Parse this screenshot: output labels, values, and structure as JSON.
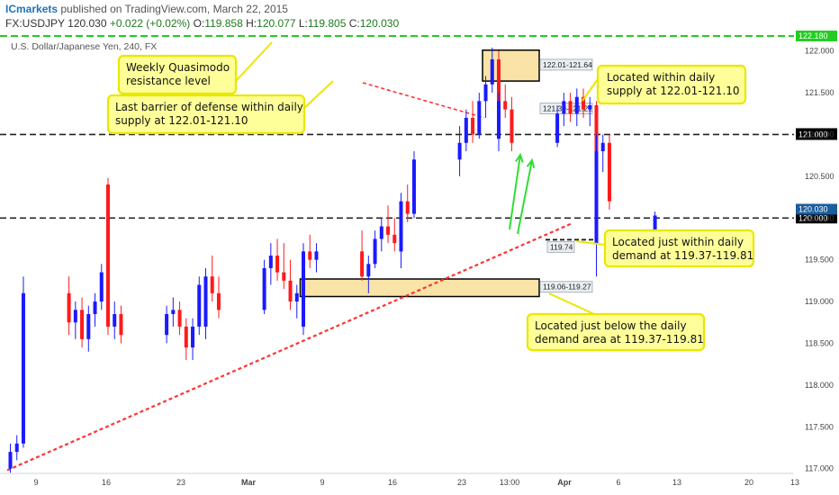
{
  "header": {
    "brand": "ICmarkets",
    "published": "published on TradingView.com, March 22, 2015",
    "symbol": "FX:USDJPY",
    "last": "120.030",
    "change": "+0.022 (+0.02%)",
    "o_label": "O:",
    "o": "119.858",
    "h_label": "H:",
    "h": "120.077",
    "l_label": "L:",
    "l": "119.805",
    "c_label": "C:",
    "c": "120.030"
  },
  "colors": {
    "bull": "#1a1aff",
    "bear": "#ff1a1a",
    "zone_fill": "#f9e3a6",
    "note_fill": "#ffff99",
    "note_border": "#e8e800",
    "green_level": "#22cc22",
    "trend_red": "#ff3333",
    "label_gray_bg": "#e9eef2",
    "price_blue_bg": "#1b5e9e",
    "price_black_bg": "#000000"
  },
  "chart_data": {
    "type": "candlestick",
    "title": "U.S. Dollar/Japanese Yen, 240, FX",
    "y_ticks": [
      "122.000",
      "121.500",
      "121.000",
      "120.500",
      "120.000",
      "119.500",
      "119.000",
      "118.500",
      "118.000",
      "117.500",
      "117.000"
    ],
    "x_ticks": [
      "9",
      "16",
      "23",
      "Mar",
      "9",
      "16",
      "23",
      "13:00",
      "Apr",
      "6",
      "13",
      "20",
      "13"
    ],
    "ylim": [
      116.95,
      122.3
    ],
    "grid": false,
    "series": [
      {
        "date": "2015-02-06 00:00",
        "o": 117.0,
        "h": 117.3,
        "l": 116.95,
        "c": 117.2
      },
      {
        "date": "2015-02-06 08:00",
        "o": 117.2,
        "h": 117.4,
        "l": 117.1,
        "c": 117.3
      },
      {
        "date": "2015-02-06 16:00",
        "o": 117.3,
        "h": 119.3,
        "l": 117.25,
        "c": 119.1
      },
      {
        "date": "2015-02-09 00:00",
        "o": 119.1,
        "h": 119.3,
        "l": 118.6,
        "c": 118.75
      },
      {
        "date": "2015-02-09 08:00",
        "o": 118.75,
        "h": 119.0,
        "l": 118.55,
        "c": 118.9
      },
      {
        "date": "2015-02-09 16:00",
        "o": 118.9,
        "h": 119.05,
        "l": 118.45,
        "c": 118.55
      },
      {
        "date": "2015-02-10 00:00",
        "o": 118.55,
        "h": 118.95,
        "l": 118.4,
        "c": 118.85
      },
      {
        "date": "2015-02-10 08:00",
        "o": 118.85,
        "h": 119.1,
        "l": 118.7,
        "c": 119.0
      },
      {
        "date": "2015-02-10 16:00",
        "o": 119.0,
        "h": 119.45,
        "l": 118.9,
        "c": 119.35
      },
      {
        "date": "2015-02-11 00:00",
        "o": 119.35,
        "h": 119.7,
        "l": 119.2,
        "c": 119.6
      },
      {
        "date": "2015-02-11 08:00",
        "o": 119.6,
        "h": 120.1,
        "l": 119.5,
        "c": 120.0
      },
      {
        "date": "2015-02-11 16:00",
        "o": 120.0,
        "h": 120.45,
        "l": 119.9,
        "c": 120.4
      },
      {
        "date": "2015-02-12 00:00",
        "o": 120.4,
        "h": 120.48,
        "l": 119.9,
        "c": 120.0
      },
      {
        "date": "2015-02-12 08:00",
        "o": 120.0,
        "h": 120.1,
        "l": 119.3,
        "c": 119.4
      },
      {
        "date": "2015-02-12 16:00",
        "o": 119.4,
        "h": 119.5,
        "l": 118.9,
        "c": 119.0
      },
      {
        "date": "2015-02-13 00:00",
        "o": 119.0,
        "h": 119.2,
        "l": 118.6,
        "c": 118.7
      },
      {
        "date": "2015-02-13 08:00",
        "o": 118.7,
        "h": 119.0,
        "l": 118.55,
        "c": 118.85
      },
      {
        "date": "2015-02-13 16:00",
        "o": 118.85,
        "h": 118.95,
        "l": 118.5,
        "c": 118.6
      },
      {
        "date": "2015-02-16 00:00",
        "o": 118.6,
        "h": 118.95,
        "l": 118.5,
        "c": 118.85
      },
      {
        "date": "2015-02-16 08:00",
        "o": 118.85,
        "h": 119.05,
        "l": 118.7,
        "c": 118.9
      },
      {
        "date": "2015-02-16 16:00",
        "o": 118.9,
        "h": 119.0,
        "l": 118.6,
        "c": 118.7
      },
      {
        "date": "2015-02-17 00:00",
        "o": 118.7,
        "h": 118.8,
        "l": 118.3,
        "c": 118.45
      },
      {
        "date": "2015-02-17 08:00",
        "o": 118.45,
        "h": 118.8,
        "l": 118.3,
        "c": 118.7
      },
      {
        "date": "2015-02-17 16:00",
        "o": 118.7,
        "h": 119.3,
        "l": 118.6,
        "c": 119.2
      },
      {
        "date": "2015-02-18 00:00",
        "o": 119.2,
        "h": 119.4,
        "l": 118.8,
        "c": 118.9
      },
      {
        "date": "2015-02-18 08:00",
        "o": 118.9,
        "h": 119.1,
        "l": 118.7,
        "c": 119.0
      },
      {
        "date": "2015-02-18 16:00",
        "o": 119.0,
        "h": 119.1,
        "l": 118.65,
        "c": 118.75
      },
      {
        "date": "2015-02-19 00:00",
        "o": 118.75,
        "h": 118.9,
        "l": 118.55,
        "c": 118.8
      },
      {
        "date": "2015-02-19 08:00",
        "o": 118.8,
        "h": 119.0,
        "l": 118.6,
        "c": 118.7
      },
      {
        "date": "2015-02-19 16:00",
        "o": 118.7,
        "h": 119.05,
        "l": 118.6,
        "c": 118.95
      },
      {
        "date": "2015-02-20 00:00",
        "o": 118.95,
        "h": 119.4,
        "l": 118.85,
        "c": 119.3
      },
      {
        "date": "2015-02-20 08:00",
        "o": 119.3,
        "h": 119.55,
        "l": 119.0,
        "c": 119.1
      },
      {
        "date": "2015-02-20 16:00",
        "o": 119.1,
        "h": 119.3,
        "l": 118.8,
        "c": 118.9
      },
      {
        "date": "2015-02-23 00:00",
        "o": 118.9,
        "h": 119.5,
        "l": 118.85,
        "c": 119.4
      },
      {
        "date": "2015-02-23 08:00",
        "o": 119.4,
        "h": 119.7,
        "l": 119.2,
        "c": 119.55
      },
      {
        "date": "2015-02-23 16:00",
        "o": 119.55,
        "h": 119.75,
        "l": 119.25,
        "c": 119.35
      },
      {
        "date": "2015-02-24 00:00",
        "o": 119.35,
        "h": 119.7,
        "l": 119.15,
        "c": 119.25
      },
      {
        "date": "2015-02-24 08:00",
        "o": 119.25,
        "h": 119.5,
        "l": 118.9,
        "c": 119.0
      },
      {
        "date": "2015-02-24 16:00",
        "o": 119.0,
        "h": 119.2,
        "l": 118.8,
        "c": 119.1
      },
      {
        "date": "2015-02-25 00:00",
        "o": 119.1,
        "h": 119.3,
        "l": 118.85,
        "c": 118.95
      },
      {
        "date": "2015-02-25 08:00",
        "o": 118.95,
        "h": 119.2,
        "l": 118.8,
        "c": 119.05
      },
      {
        "date": "2015-02-25 16:00",
        "o": 119.05,
        "h": 119.15,
        "l": 118.75,
        "c": 118.85
      },
      {
        "date": "2015-02-26 00:00",
        "o": 118.85,
        "h": 119.0,
        "l": 118.6,
        "c": 118.7
      },
      {
        "date": "2015-02-26 08:00",
        "o": 118.7,
        "h": 119.1,
        "l": 118.6,
        "c": 119.0
      },
      {
        "date": "2015-02-26 16:00",
        "o": 119.0,
        "h": 119.5,
        "l": 118.95,
        "c": 119.4
      },
      {
        "date": "2015-02-27 00:00",
        "o": 119.4,
        "h": 119.7,
        "l": 119.3,
        "c": 119.6
      },
      {
        "date": "2015-02-27 08:00",
        "o": 119.6,
        "h": 119.8,
        "l": 119.4,
        "c": 119.5
      },
      {
        "date": "2015-02-27 16:00",
        "o": 119.5,
        "h": 119.7,
        "l": 119.35,
        "c": 119.6
      },
      {
        "date": "2015-03-02 00:00",
        "o": 119.6,
        "h": 119.85,
        "l": 119.25,
        "c": 119.3
      },
      {
        "date": "2015-03-02 08:00",
        "o": 119.3,
        "h": 119.55,
        "l": 119.1,
        "c": 119.45
      },
      {
        "date": "2015-03-02 16:00",
        "o": 119.45,
        "h": 119.85,
        "l": 119.4,
        "c": 119.75
      },
      {
        "date": "2015-03-03 00:00",
        "o": 119.75,
        "h": 120.0,
        "l": 119.6,
        "c": 119.9
      },
      {
        "date": "2015-03-03 08:00",
        "o": 119.9,
        "h": 120.15,
        "l": 119.7,
        "c": 119.8
      },
      {
        "date": "2015-03-03 16:00",
        "o": 119.8,
        "h": 120.0,
        "l": 119.6,
        "c": 119.7
      },
      {
        "date": "2015-03-04 00:00",
        "o": 119.7,
        "h": 120.05,
        "l": 119.6,
        "c": 119.95
      },
      {
        "date": "2015-03-04 08:00",
        "o": 119.95,
        "h": 120.1,
        "l": 119.75,
        "c": 119.85
      },
      {
        "date": "2015-03-04 16:00",
        "o": 119.85,
        "h": 119.95,
        "l": 119.6,
        "c": 119.75
      },
      {
        "date": "2015-03-05 00:00",
        "o": 119.75,
        "h": 119.9,
        "l": 119.5,
        "c": 119.6
      },
      {
        "date": "2015-03-05 08:00",
        "o": 119.6,
        "h": 119.8,
        "l": 119.4,
        "c": 119.7
      },
      {
        "date": "2015-03-05 16:00",
        "o": 119.7,
        "h": 120.0,
        "l": 119.6,
        "c": 119.9
      },
      {
        "date": "2015-03-06 00:00",
        "o": 119.9,
        "h": 120.3,
        "l": 119.8,
        "c": 120.2
      },
      {
        "date": "2015-03-06 08:00",
        "o": 120.2,
        "h": 120.4,
        "l": 119.95,
        "c": 120.05
      },
      {
        "date": "2015-03-06 16:00",
        "o": 120.05,
        "h": 120.8,
        "l": 120.0,
        "c": 120.7
      },
      {
        "date": "2015-03-09 00:00",
        "o": 120.7,
        "h": 121.1,
        "l": 120.5,
        "c": 120.9
      },
      {
        "date": "2015-03-09 08:00",
        "o": 120.9,
        "h": 121.3,
        "l": 120.8,
        "c": 121.2
      },
      {
        "date": "2015-03-09 16:00",
        "o": 121.2,
        "h": 121.4,
        "l": 120.9,
        "c": 121.0
      },
      {
        "date": "2015-03-10 00:00",
        "o": 121.0,
        "h": 121.5,
        "l": 120.95,
        "c": 121.4
      },
      {
        "date": "2015-03-10 08:00",
        "o": 121.4,
        "h": 121.7,
        "l": 121.2,
        "c": 121.6
      },
      {
        "date": "2015-03-10 16:00",
        "o": 121.6,
        "h": 122.04,
        "l": 121.5,
        "c": 121.9
      },
      {
        "date": "2015-03-11 00:00",
        "o": 121.9,
        "h": 122.0,
        "l": 121.3,
        "c": 121.4
      },
      {
        "date": "2015-03-11 08:00",
        "o": 121.4,
        "h": 121.6,
        "l": 121.1,
        "c": 121.2
      },
      {
        "date": "2015-03-11 16:00",
        "o": 121.2,
        "h": 121.4,
        "l": 120.85,
        "c": 120.95
      },
      {
        "date": "2015-03-12 00:00",
        "o": 120.95,
        "h": 121.3,
        "l": 120.8,
        "c": 121.2
      },
      {
        "date": "2015-03-12 08:00",
        "o": 121.2,
        "h": 121.6,
        "l": 121.1,
        "c": 121.5
      },
      {
        "date": "2015-03-12 16:00",
        "o": 121.5,
        "h": 121.65,
        "l": 121.2,
        "c": 121.3
      },
      {
        "date": "2015-03-13 00:00",
        "o": 121.3,
        "h": 121.5,
        "l": 121.1,
        "c": 121.4
      },
      {
        "date": "2015-03-13 08:00",
        "o": 121.4,
        "h": 121.6,
        "l": 121.2,
        "c": 121.3
      },
      {
        "date": "2015-03-13 16:00",
        "o": 121.3,
        "h": 121.45,
        "l": 120.8,
        "c": 120.9
      },
      {
        "date": "2015-03-16 00:00",
        "o": 120.9,
        "h": 121.35,
        "l": 120.85,
        "c": 121.25
      },
      {
        "date": "2015-03-16 08:00",
        "o": 121.25,
        "h": 121.5,
        "l": 121.1,
        "c": 121.4
      },
      {
        "date": "2015-03-16 16:00",
        "o": 121.4,
        "h": 121.5,
        "l": 121.15,
        "c": 121.25
      },
      {
        "date": "2015-03-17 00:00",
        "o": 121.25,
        "h": 121.55,
        "l": 121.1,
        "c": 121.45
      },
      {
        "date": "2015-03-17 08:00",
        "o": 121.45,
        "h": 121.55,
        "l": 121.2,
        "c": 121.3
      },
      {
        "date": "2015-03-17 16:00",
        "o": 121.3,
        "h": 121.45,
        "l": 121.1,
        "c": 121.35
      },
      {
        "date": "2015-03-18 00:00",
        "o": 121.35,
        "h": 121.4,
        "l": 121.05,
        "c": 121.15
      },
      {
        "date": "2015-03-18 08:00",
        "o": 121.15,
        "h": 121.3,
        "l": 120.7,
        "c": 120.8
      },
      {
        "date": "2015-03-18 16:00",
        "o": 120.8,
        "h": 120.9,
        "l": 119.5,
        "c": 119.7
      },
      {
        "date": "2015-03-19 00:00",
        "o": 119.7,
        "h": 119.9,
        "l": 119.3,
        "c": 119.8
      },
      {
        "date": "2015-03-19 08:00",
        "o": 119.8,
        "h": 120.4,
        "l": 119.74,
        "c": 120.3
      },
      {
        "date": "2015-03-19 16:00",
        "o": 120.3,
        "h": 120.7,
        "l": 120.2,
        "c": 120.6
      },
      {
        "date": "2015-03-20 00:00",
        "o": 120.6,
        "h": 121.0,
        "l": 120.5,
        "c": 120.8
      },
      {
        "date": "2015-03-20 08:00",
        "o": 120.8,
        "h": 121.0,
        "l": 120.55,
        "c": 120.9
      },
      {
        "date": "2015-03-20 16:00",
        "o": 120.9,
        "h": 121.0,
        "l": 120.1,
        "c": 120.2
      },
      {
        "date": "2015-03-23 00:00",
        "o": 119.858,
        "h": 120.077,
        "l": 119.805,
        "c": 120.03
      }
    ],
    "levels": [
      {
        "price": 122.18,
        "style": "dashed",
        "color": "green",
        "label": "122.180"
      },
      {
        "price": 121.0,
        "style": "dashed",
        "color": "black",
        "label": "121.000"
      },
      {
        "price": 120.0,
        "style": "dashed",
        "color": "black",
        "label": "120.000"
      }
    ],
    "last_price_label": "120.030",
    "zones": [
      {
        "label": "122.01-121.64",
        "top": 122.01,
        "bottom": 121.64,
        "from": "2015-03-10 08:00"
      },
      {
        "label": "121.39-121.21",
        "top": 121.39,
        "bottom": 121.21,
        "from": "2015-03-17 16:00"
      },
      {
        "label": "119.06-119.27",
        "top": 119.27,
        "bottom": 119.06,
        "from": "2015-02-26 16:00"
      }
    ],
    "support_line": {
      "label": "119.74",
      "price": 119.74,
      "from": "2015-03-19 08:00",
      "to": "2015-03-25 00:00"
    },
    "trendlines": [
      {
        "name": "ascending trendline",
        "from": {
          "date": "2015-02-06 00:00",
          "price": 116.98
        },
        "to": {
          "date": "2015-03-26 00:00",
          "price": 119.93
        }
      },
      {
        "name": "descending resistance",
        "from": {
          "date": "2015-03-12 08:00",
          "price": 121.62
        },
        "to": {
          "date": "2015-03-24 00:00",
          "price": 121.2
        }
      }
    ],
    "annotations": [
      {
        "text": [
          "Weekly Quasimodo",
          "resistance level"
        ]
      },
      {
        "text": [
          "Last barrier of defense within daily",
          "supply at 122.01-121.10"
        ]
      },
      {
        "text": [
          "Located within daily",
          "supply at 122.01-121.10"
        ]
      },
      {
        "text": [
          "Located just within daily",
          "demand at 119.37-119.81"
        ]
      },
      {
        "text": [
          "Located just below the daily",
          "demand area at 119.37-119.81"
        ]
      }
    ]
  }
}
